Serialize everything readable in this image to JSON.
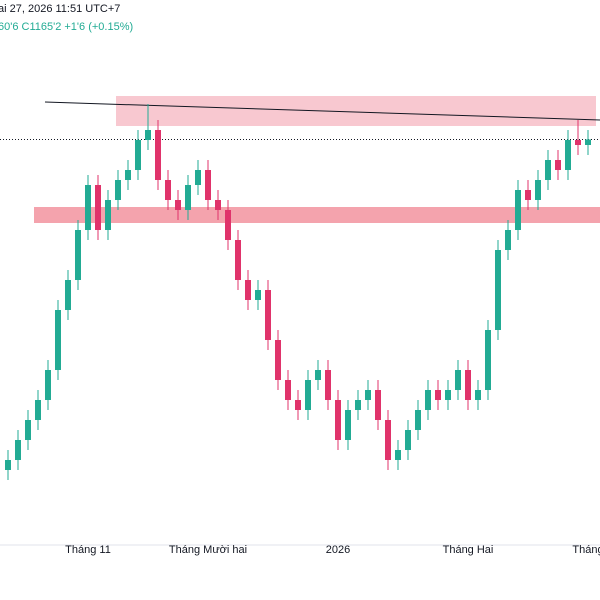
{
  "chart_data": {
    "type": "candlestick",
    "header": "ai 27, 2026 11:51 UTC+7",
    "quote": "60'6  C1165'2  +1'6 (+0.15%)",
    "ylim": [
      962.5,
      1235
    ],
    "up_color": "#22ab94",
    "down_color": "#e0336b",
    "open": [
      1000,
      1005,
      1015,
      1025,
      1035,
      1050,
      1080,
      1095,
      1120,
      1142.5,
      1120,
      1135,
      1145,
      1150,
      1165,
      1170,
      1145,
      1135,
      1130,
      1142.5,
      1150,
      1135,
      1130,
      1115,
      1095,
      1085,
      1090,
      1065,
      1045,
      1035,
      1030,
      1045,
      1050,
      1035,
      1015,
      1030,
      1035,
      1040,
      1025,
      1005,
      1010,
      1020,
      1030,
      1040,
      1035,
      1040,
      1050,
      1035,
      1040,
      1070,
      1110,
      1120,
      1140,
      1135,
      1145,
      1155,
      1150,
      1165,
      1162.5
    ],
    "high": [
      1010,
      1020,
      1030,
      1040,
      1055,
      1085,
      1100,
      1125,
      1147.5,
      1147.5,
      1140,
      1150,
      1155,
      1170,
      1183,
      1175,
      1150,
      1140,
      1147.5,
      1155,
      1155,
      1140,
      1135,
      1120,
      1100,
      1095,
      1095,
      1070,
      1050,
      1040,
      1050,
      1055,
      1055,
      1040,
      1035,
      1040,
      1045,
      1045,
      1030,
      1015,
      1025,
      1035,
      1045,
      1045,
      1045,
      1055,
      1055,
      1045,
      1075,
      1115,
      1125,
      1145,
      1145,
      1150,
      1160,
      1160,
      1170,
      1175,
      1170
    ],
    "low": [
      995,
      1000,
      1010,
      1020,
      1030,
      1045,
      1075,
      1090,
      1115,
      1115,
      1115,
      1130,
      1140,
      1145,
      1160,
      1140,
      1130,
      1125,
      1125,
      1137.5,
      1130,
      1125,
      1110,
      1090,
      1080,
      1080,
      1060,
      1040,
      1030,
      1025,
      1025,
      1040,
      1030,
      1010,
      1010,
      1025,
      1030,
      1020,
      1000,
      1000,
      1005,
      1015,
      1025,
      1030,
      1030,
      1035,
      1030,
      1030,
      1035,
      1065,
      1105,
      1115,
      1130,
      1130,
      1140,
      1145,
      1145,
      1157.5,
      1157.5
    ],
    "close": [
      1005,
      1015,
      1025,
      1035,
      1050,
      1080,
      1095,
      1120,
      1142.5,
      1120,
      1135,
      1145,
      1150,
      1165,
      1170,
      1145,
      1135,
      1130,
      1142.5,
      1150,
      1135,
      1130,
      1115,
      1095,
      1085,
      1090,
      1065,
      1045,
      1035,
      1030,
      1045,
      1050,
      1035,
      1015,
      1030,
      1035,
      1040,
      1025,
      1005,
      1010,
      1020,
      1030,
      1040,
      1035,
      1040,
      1050,
      1035,
      1040,
      1070,
      1110,
      1120,
      1140,
      1135,
      1145,
      1155,
      1150,
      1165,
      1162.5,
      1165.25
    ],
    "time_labels": [
      {
        "label": "Tháng 11",
        "index": 8
      },
      {
        "label": "Tháng Mười hai",
        "index": 20
      },
      {
        "label": "2026",
        "index": 33
      },
      {
        "label": "Tháng Hai",
        "index": 46
      },
      {
        "label": "Tháng",
        "index": 58
      }
    ],
    "zones": [
      {
        "low": 1172,
        "high": 1187,
        "color": "#f8c8d0"
      },
      {
        "low": 1123.5,
        "high": 1131.5,
        "color": "#f4a3ad"
      }
    ],
    "trendline": [
      1184,
      1175
    ],
    "last_price": 1165.25
  }
}
